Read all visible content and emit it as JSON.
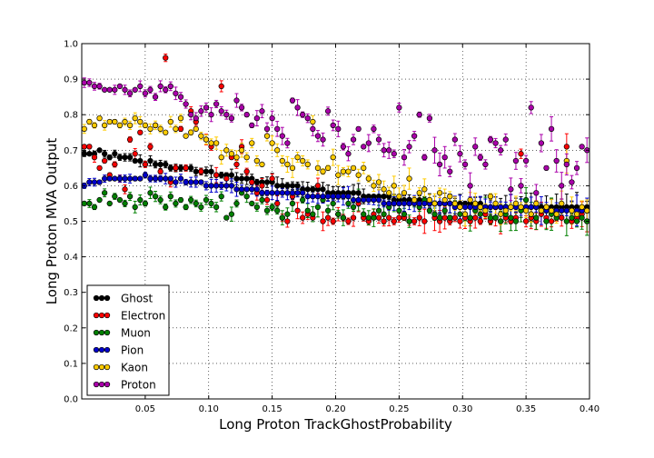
{
  "chart_data": {
    "type": "scatter",
    "title": "",
    "xlabel": "Long Proton TrackGhostProbability",
    "ylabel": "Long Proton MVA Output",
    "xlim": [
      0.0,
      0.4
    ],
    "ylim": [
      0.0,
      1.0
    ],
    "xticks": [
      0.05,
      0.1,
      0.15,
      0.2,
      0.25,
      0.3,
      0.35,
      0.4
    ],
    "xtick_labels": [
      "0.05",
      "0.10",
      "0.15",
      "0.20",
      "0.25",
      "0.30",
      "0.35",
      "0.40"
    ],
    "yticks": [
      0.0,
      0.1,
      0.2,
      0.3,
      0.4,
      0.5,
      0.6,
      0.7,
      0.8,
      0.9,
      1.0
    ],
    "ytick_labels": [
      "0.0",
      "0.1",
      "0.2",
      "0.3",
      "0.4",
      "0.5",
      "0.6",
      "0.7",
      "0.8",
      "0.9",
      "1.0"
    ],
    "grid": true,
    "legend_position": "bottom-left",
    "bin_width": 0.004,
    "series": [
      {
        "name": "Ghost",
        "color": "#000000",
        "values": [
          0.69,
          0.69,
          0.69,
          0.7,
          0.69,
          0.68,
          0.69,
          0.68,
          0.68,
          0.68,
          0.67,
          0.67,
          0.66,
          0.67,
          0.66,
          0.66,
          0.66,
          0.65,
          0.65,
          0.65,
          0.65,
          0.65,
          0.64,
          0.64,
          0.64,
          0.64,
          0.63,
          0.63,
          0.63,
          0.63,
          0.62,
          0.62,
          0.62,
          0.62,
          0.61,
          0.61,
          0.61,
          0.61,
          0.6,
          0.6,
          0.6,
          0.6,
          0.6,
          0.59,
          0.59,
          0.59,
          0.59,
          0.59,
          0.58,
          0.58,
          0.58,
          0.58,
          0.58,
          0.58,
          0.58,
          0.57,
          0.57,
          0.57,
          0.57,
          0.57,
          0.57,
          0.56,
          0.56,
          0.56,
          0.56,
          0.56,
          0.56,
          0.56,
          0.56,
          0.55,
          0.55,
          0.55,
          0.55,
          0.55,
          0.55,
          0.55,
          0.55,
          0.55,
          0.55,
          0.54,
          0.54,
          0.54,
          0.54,
          0.54,
          0.54,
          0.54,
          0.54,
          0.54,
          0.54,
          0.54,
          0.54,
          0.54,
          0.54,
          0.54,
          0.54,
          0.54,
          0.54,
          0.54,
          0.54,
          0.54
        ]
      },
      {
        "name": "Electron",
        "color": "#ff0000",
        "values": [
          0.71,
          0.71,
          0.68,
          0.65,
          0.67,
          0.63,
          0.66,
          0.62,
          0.59,
          0.73,
          0.69,
          0.75,
          0.66,
          0.71,
          0.77,
          0.64,
          0.96,
          0.61,
          0.65,
          0.76,
          0.65,
          0.81,
          0.78,
          0.64,
          0.73,
          0.71,
          0.63,
          0.88,
          0.62,
          0.68,
          0.66,
          0.71,
          0.64,
          0.61,
          0.58,
          0.6,
          0.56,
          0.62,
          0.55,
          0.51,
          0.5,
          0.57,
          0.53,
          0.51,
          0.52,
          0.51,
          0.6,
          0.5,
          0.51,
          0.5,
          0.52,
          0.51,
          0.5,
          0.51,
          0.55,
          0.51,
          0.5,
          0.52,
          0.51,
          0.5,
          0.51,
          0.5,
          0.51,
          0.51,
          0.5,
          0.5,
          0.51,
          0.5,
          0.55,
          0.51,
          0.5,
          0.51,
          0.5,
          0.51,
          0.5,
          0.51,
          0.5,
          0.51,
          0.5,
          0.52,
          0.5,
          0.51,
          0.5,
          0.51,
          0.5,
          0.51,
          0.69,
          0.5,
          0.51,
          0.5,
          0.52,
          0.51,
          0.5,
          0.52,
          0.51,
          0.71,
          0.5,
          0.51,
          0.52,
          0.5
        ]
      },
      {
        "name": "Muon",
        "color": "#008000",
        "values": [
          0.55,
          0.55,
          0.54,
          0.56,
          0.58,
          0.55,
          0.57,
          0.56,
          0.55,
          0.57,
          0.54,
          0.56,
          0.55,
          0.58,
          0.57,
          0.56,
          0.54,
          0.57,
          0.55,
          0.56,
          0.54,
          0.56,
          0.55,
          0.54,
          0.56,
          0.55,
          0.54,
          0.57,
          0.51,
          0.52,
          0.55,
          0.58,
          0.57,
          0.55,
          0.54,
          0.56,
          0.53,
          0.54,
          0.53,
          0.51,
          0.52,
          0.55,
          0.58,
          0.56,
          0.53,
          0.52,
          0.54,
          0.56,
          0.53,
          0.55,
          0.52,
          0.51,
          0.55,
          0.54,
          0.56,
          0.52,
          0.51,
          0.51,
          0.53,
          0.52,
          0.54,
          0.55,
          0.53,
          0.52,
          0.5,
          0.55,
          0.54,
          0.56,
          0.53,
          0.52,
          0.51,
          0.53,
          0.51,
          0.54,
          0.52,
          0.52,
          0.51,
          0.53,
          0.52,
          0.54,
          0.51,
          0.51,
          0.5,
          0.52,
          0.51,
          0.5,
          0.53,
          0.56,
          0.52,
          0.51,
          0.53,
          0.5,
          0.52,
          0.51,
          0.53,
          0.5,
          0.51,
          0.5,
          0.51,
          0.5
        ]
      },
      {
        "name": "Pion",
        "color": "#0000cc",
        "values": [
          0.6,
          0.61,
          0.61,
          0.61,
          0.62,
          0.62,
          0.62,
          0.62,
          0.62,
          0.62,
          0.62,
          0.62,
          0.63,
          0.62,
          0.62,
          0.62,
          0.62,
          0.62,
          0.61,
          0.62,
          0.61,
          0.61,
          0.61,
          0.61,
          0.6,
          0.6,
          0.6,
          0.6,
          0.6,
          0.6,
          0.59,
          0.59,
          0.59,
          0.59,
          0.59,
          0.58,
          0.58,
          0.58,
          0.58,
          0.58,
          0.58,
          0.58,
          0.58,
          0.58,
          0.57,
          0.57,
          0.57,
          0.57,
          0.57,
          0.57,
          0.57,
          0.57,
          0.57,
          0.56,
          0.56,
          0.56,
          0.56,
          0.56,
          0.56,
          0.55,
          0.55,
          0.55,
          0.55,
          0.55,
          0.55,
          0.55,
          0.55,
          0.55,
          0.55,
          0.55,
          0.55,
          0.55,
          0.55,
          0.54,
          0.54,
          0.54,
          0.54,
          0.54,
          0.54,
          0.54,
          0.54,
          0.54,
          0.54,
          0.54,
          0.54,
          0.54,
          0.54,
          0.54,
          0.54,
          0.54,
          0.53,
          0.53,
          0.53,
          0.53,
          0.53,
          0.53,
          0.53,
          0.53,
          0.53,
          0.53
        ]
      },
      {
        "name": "Kaon",
        "color": "#ffcc00",
        "values": [
          0.76,
          0.78,
          0.77,
          0.79,
          0.77,
          0.78,
          0.78,
          0.77,
          0.78,
          0.77,
          0.79,
          0.78,
          0.77,
          0.76,
          0.77,
          0.76,
          0.75,
          0.78,
          0.76,
          0.79,
          0.74,
          0.75,
          0.76,
          0.74,
          0.73,
          0.72,
          0.72,
          0.68,
          0.7,
          0.69,
          0.68,
          0.7,
          0.68,
          0.72,
          0.67,
          0.66,
          0.74,
          0.72,
          0.7,
          0.67,
          0.66,
          0.65,
          0.68,
          0.67,
          0.66,
          0.78,
          0.65,
          0.64,
          0.65,
          0.68,
          0.63,
          0.64,
          0.64,
          0.65,
          0.63,
          0.65,
          0.62,
          0.6,
          0.61,
          0.59,
          0.58,
          0.6,
          0.57,
          0.58,
          0.62,
          0.56,
          0.58,
          0.59,
          0.56,
          0.55,
          0.58,
          0.56,
          0.57,
          0.55,
          0.54,
          0.52,
          0.56,
          0.55,
          0.54,
          0.53,
          0.57,
          0.55,
          0.52,
          0.53,
          0.54,
          0.55,
          0.54,
          0.53,
          0.52,
          0.55,
          0.53,
          0.54,
          0.53,
          0.52,
          0.55,
          0.67,
          0.53,
          0.52,
          0.54,
          0.53
        ]
      },
      {
        "name": "Proton",
        "color": "#aa00aa",
        "values": [
          0.89,
          0.89,
          0.88,
          0.88,
          0.87,
          0.87,
          0.87,
          0.88,
          0.87,
          0.86,
          0.87,
          0.88,
          0.86,
          0.87,
          0.85,
          0.88,
          0.87,
          0.88,
          0.86,
          0.85,
          0.83,
          0.8,
          0.79,
          0.81,
          0.82,
          0.8,
          0.83,
          0.81,
          0.8,
          0.79,
          0.84,
          0.82,
          0.8,
          0.77,
          0.79,
          0.81,
          0.76,
          0.79,
          0.76,
          0.74,
          0.72,
          0.84,
          0.82,
          0.8,
          0.79,
          0.76,
          0.74,
          0.73,
          0.81,
          0.77,
          0.76,
          0.71,
          0.69,
          0.73,
          0.76,
          0.71,
          0.72,
          0.76,
          0.73,
          0.7,
          0.7,
          0.69,
          0.82,
          0.68,
          0.71,
          0.74,
          0.8,
          0.68,
          0.79,
          0.7,
          0.66,
          0.68,
          0.64,
          0.73,
          0.69,
          0.66,
          0.6,
          0.71,
          0.68,
          0.66,
          0.73,
          0.72,
          0.7,
          0.73,
          0.59,
          0.67,
          0.6,
          0.67,
          0.82,
          0.58,
          0.72,
          0.65,
          0.76,
          0.67,
          0.6,
          0.66,
          0.61,
          0.65,
          0.71,
          0.7
        ]
      }
    ]
  }
}
